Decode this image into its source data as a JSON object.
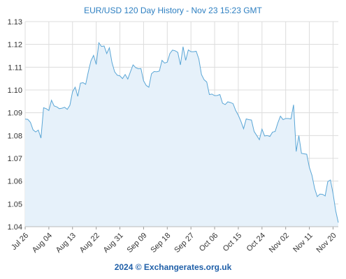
{
  "header": {
    "title": "EUR/USD 120 Day History - Nov 23 15:23 GMT"
  },
  "footer": {
    "text": "2024 © Exchangerates.org.uk"
  },
  "colors": {
    "line": "#5aa6d6",
    "fill": "#e6f1fa",
    "grid": "#dcdcdc",
    "title": "#2d7fc1",
    "footer": "#1f5fa8"
  },
  "chart_data": {
    "type": "area",
    "title": "EUR/USD 120 Day History - Nov 23 15:23 GMT",
    "xlabel": "",
    "ylabel": "",
    "ylim": [
      1.04,
      1.13
    ],
    "grid": true,
    "x_start": "2024-07-26",
    "x_end": "2024-11-22",
    "y_ticks": [
      "1.04",
      "1.05",
      "1.06",
      "1.07",
      "1.08",
      "1.09",
      "1.10",
      "1.11",
      "1.12",
      "1.13"
    ],
    "x_ticks": [
      {
        "label": "Jul 26",
        "date": "2024-07-26"
      },
      {
        "label": "Aug 04",
        "date": "2024-08-04"
      },
      {
        "label": "Aug 13",
        "date": "2024-08-13"
      },
      {
        "label": "Aug 22",
        "date": "2024-08-22"
      },
      {
        "label": "Aug 31",
        "date": "2024-08-31"
      },
      {
        "label": "Sep 09",
        "date": "2024-09-09"
      },
      {
        "label": "Sep 18",
        "date": "2024-09-18"
      },
      {
        "label": "Sep 27",
        "date": "2024-09-27"
      },
      {
        "label": "Oct 06",
        "date": "2024-10-06"
      },
      {
        "label": "Oct 15",
        "date": "2024-10-15"
      },
      {
        "label": "Oct 24",
        "date": "2024-10-24"
      },
      {
        "label": "Nov 02",
        "date": "2024-11-02"
      },
      {
        "label": "Nov 11",
        "date": "2024-11-11"
      },
      {
        "label": "Nov 20",
        "date": "2024-11-20"
      }
    ],
    "series": [
      {
        "name": "",
        "points": [
          [
            "2024-07-26",
            1.0872
          ],
          [
            "2024-07-27",
            1.0871
          ],
          [
            "2024-07-28",
            1.0858
          ],
          [
            "2024-07-29",
            1.0825
          ],
          [
            "2024-07-30",
            1.0816
          ],
          [
            "2024-07-31",
            1.0824
          ],
          [
            "2024-08-01",
            1.0789
          ],
          [
            "2024-08-02",
            1.0922
          ],
          [
            "2024-08-03",
            1.0918
          ],
          [
            "2024-08-04",
            1.091
          ],
          [
            "2024-08-05",
            1.0955
          ],
          [
            "2024-08-06",
            1.093
          ],
          [
            "2024-08-07",
            1.0926
          ],
          [
            "2024-08-08",
            1.0918
          ],
          [
            "2024-08-09",
            1.092
          ],
          [
            "2024-08-10",
            1.0924
          ],
          [
            "2024-08-11",
            1.0915
          ],
          [
            "2024-08-12",
            1.0933
          ],
          [
            "2024-08-13",
            1.0992
          ],
          [
            "2024-08-14",
            1.1012
          ],
          [
            "2024-08-15",
            1.0972
          ],
          [
            "2024-08-16",
            1.103
          ],
          [
            "2024-08-17",
            1.1032
          ],
          [
            "2024-08-18",
            1.1025
          ],
          [
            "2024-08-19",
            1.108
          ],
          [
            "2024-08-20",
            1.1128
          ],
          [
            "2024-08-21",
            1.1152
          ],
          [
            "2024-08-22",
            1.1112
          ],
          [
            "2024-08-23",
            1.1207
          ],
          [
            "2024-08-24",
            1.1191
          ],
          [
            "2024-08-25",
            1.1193
          ],
          [
            "2024-08-26",
            1.116
          ],
          [
            "2024-08-27",
            1.1185
          ],
          [
            "2024-08-28",
            1.112
          ],
          [
            "2024-08-29",
            1.108
          ],
          [
            "2024-08-30",
            1.1065
          ],
          [
            "2024-08-31",
            1.1062
          ],
          [
            "2024-09-01",
            1.105
          ],
          [
            "2024-09-02",
            1.1068
          ],
          [
            "2024-09-03",
            1.1048
          ],
          [
            "2024-09-04",
            1.108
          ],
          [
            "2024-09-05",
            1.111
          ],
          [
            "2024-09-06",
            1.1098
          ],
          [
            "2024-09-07",
            1.1093
          ],
          [
            "2024-09-08",
            1.1094
          ],
          [
            "2024-09-09",
            1.104
          ],
          [
            "2024-09-10",
            1.102
          ],
          [
            "2024-09-11",
            1.1012
          ],
          [
            "2024-09-12",
            1.1071
          ],
          [
            "2024-09-13",
            1.1081
          ],
          [
            "2024-09-14",
            1.108
          ],
          [
            "2024-09-15",
            1.1083
          ],
          [
            "2024-09-16",
            1.113
          ],
          [
            "2024-09-17",
            1.1118
          ],
          [
            "2024-09-18",
            1.1122
          ],
          [
            "2024-09-19",
            1.116
          ],
          [
            "2024-09-20",
            1.1175
          ],
          [
            "2024-09-21",
            1.1172
          ],
          [
            "2024-09-22",
            1.1165
          ],
          [
            "2024-09-23",
            1.111
          ],
          [
            "2024-09-24",
            1.119
          ],
          [
            "2024-09-25",
            1.113
          ],
          [
            "2024-09-26",
            1.1176
          ],
          [
            "2024-09-27",
            1.1168
          ],
          [
            "2024-09-28",
            1.1168
          ],
          [
            "2024-09-29",
            1.117
          ],
          [
            "2024-09-30",
            1.1136
          ],
          [
            "2024-10-01",
            1.1068
          ],
          [
            "2024-10-02",
            1.1045
          ],
          [
            "2024-10-03",
            1.1035
          ],
          [
            "2024-10-04",
            1.098
          ],
          [
            "2024-10-05",
            1.0982
          ],
          [
            "2024-10-06",
            1.0975
          ],
          [
            "2024-10-07",
            1.0976
          ],
          [
            "2024-10-08",
            1.098
          ],
          [
            "2024-10-09",
            1.0942
          ],
          [
            "2024-10-10",
            1.0936
          ],
          [
            "2024-10-11",
            1.0948
          ],
          [
            "2024-10-12",
            1.0945
          ],
          [
            "2024-10-13",
            1.094
          ],
          [
            "2024-10-14",
            1.091
          ],
          [
            "2024-10-15",
            1.0889
          ],
          [
            "2024-10-16",
            1.0862
          ],
          [
            "2024-10-17",
            1.083
          ],
          [
            "2024-10-18",
            1.0873
          ],
          [
            "2024-10-19",
            1.087
          ],
          [
            "2024-10-20",
            1.0868
          ],
          [
            "2024-10-21",
            1.0818
          ],
          [
            "2024-10-22",
            1.08
          ],
          [
            "2024-10-23",
            1.0782
          ],
          [
            "2024-10-24",
            1.0828
          ],
          [
            "2024-10-25",
            1.0798
          ],
          [
            "2024-10-26",
            1.08
          ],
          [
            "2024-10-27",
            1.0796
          ],
          [
            "2024-10-28",
            1.0815
          ],
          [
            "2024-10-29",
            1.0818
          ],
          [
            "2024-10-30",
            1.0855
          ],
          [
            "2024-10-31",
            1.0885
          ],
          [
            "2024-11-01",
            1.087
          ],
          [
            "2024-11-02",
            1.0875
          ],
          [
            "2024-11-03",
            1.0875
          ],
          [
            "2024-11-04",
            1.0873
          ],
          [
            "2024-11-05",
            1.0935
          ],
          [
            "2024-11-06",
            1.073
          ],
          [
            "2024-11-07",
            1.08
          ],
          [
            "2024-11-08",
            1.0722
          ],
          [
            "2024-11-09",
            1.072
          ],
          [
            "2024-11-10",
            1.0718
          ],
          [
            "2024-11-11",
            1.066
          ],
          [
            "2024-11-12",
            1.0625
          ],
          [
            "2024-11-13",
            1.0568
          ],
          [
            "2024-11-14",
            1.0532
          ],
          [
            "2024-11-15",
            1.0543
          ],
          [
            "2024-11-16",
            1.0542
          ],
          [
            "2024-11-17",
            1.0535
          ],
          [
            "2024-11-18",
            1.0598
          ],
          [
            "2024-11-19",
            1.0605
          ],
          [
            "2024-11-20",
            1.0546
          ],
          [
            "2024-11-21",
            1.047
          ],
          [
            "2024-11-22",
            1.0418
          ]
        ]
      }
    ]
  }
}
